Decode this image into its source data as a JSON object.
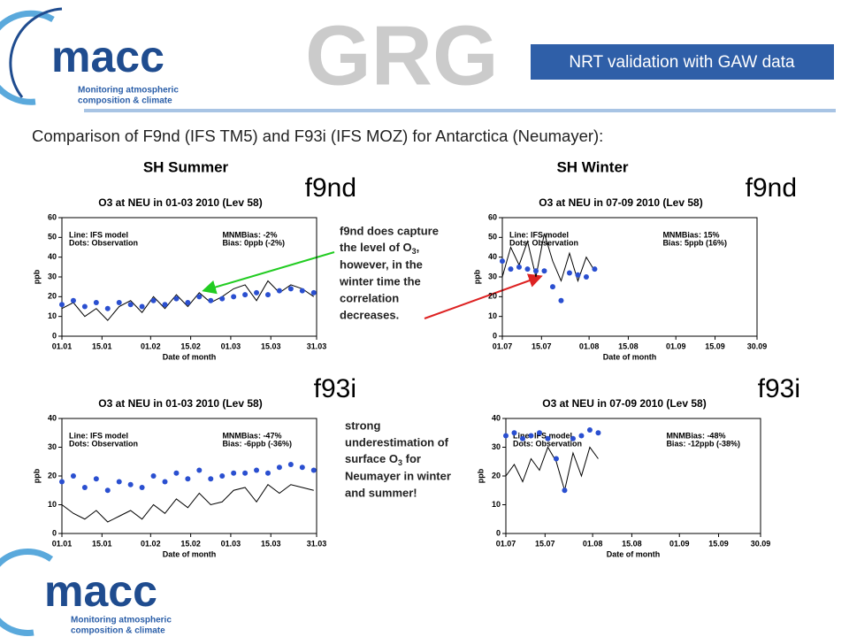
{
  "logo": {
    "name": "macc",
    "tagline_1": "Monitoring atmospheric",
    "tagline_2": "composition & climate"
  },
  "brand": "GRG",
  "header": {
    "title": "NRT validation with GAW data"
  },
  "subtitle": "Comparison of F9nd (IFS TM5) and F93i (IFS MOZ) for Antarctica (Neumayer):",
  "columns": [
    "SH Summer",
    "SH Winter"
  ],
  "notes": [
    {
      "parts": [
        "f9nd does capture",
        "the level of O",
        "3",
        ",",
        "however, in the",
        "winter time the",
        "correlation",
        "decreases."
      ]
    },
    {
      "parts": [
        "strong",
        "underestimation of",
        "surface O",
        "3",
        " for",
        "Neumayer in winter",
        "and summer!"
      ]
    }
  ],
  "chart_data": [
    {
      "type": "line",
      "title": "O3 at NEU in 01-03 2010 (Lev 58)",
      "tag": "f9nd",
      "xlabel": "Date of month",
      "ylabel": "ppb",
      "stats": [
        "MNMBias: -2%",
        "Bias: 0ppb (-2%)"
      ],
      "x": [
        0,
        4,
        8,
        12,
        16,
        20,
        24,
        28,
        32,
        36,
        40,
        44,
        48,
        52,
        56,
        60,
        64,
        68,
        72,
        76,
        80,
        84,
        88
      ],
      "series": [
        {
          "name": "Line: IFS model",
          "color": "#000000",
          "values": [
            14,
            17,
            10,
            14,
            8,
            15,
            18,
            12,
            20,
            14,
            21,
            15,
            22,
            17,
            20,
            24,
            26,
            18,
            28,
            22,
            26,
            24,
            20
          ]
        },
        {
          "name": "Dots: Observation",
          "color": "#2a4fd0",
          "values": [
            16,
            18,
            15,
            17,
            14,
            17,
            16,
            15,
            18,
            16,
            19,
            17,
            20,
            18,
            19,
            20,
            21,
            22,
            21,
            23,
            24,
            23,
            22
          ]
        }
      ],
      "xlim": [
        0,
        89
      ],
      "xticks": [
        {
          "value": 0,
          "label": "01.01"
        },
        {
          "value": 14,
          "label": "15.01"
        },
        {
          "value": 31,
          "label": "01.02"
        },
        {
          "value": 45,
          "label": "15.02"
        },
        {
          "value": 59,
          "label": "01.03"
        },
        {
          "value": 73,
          "label": "15.03"
        },
        {
          "value": 89,
          "label": "31.03"
        }
      ],
      "ylim": [
        0,
        60
      ],
      "yticks": [
        0,
        10,
        20,
        30,
        40,
        50,
        60
      ]
    },
    {
      "type": "line",
      "title": "O3 at NEU in 07-09 2010 (Lev 58)",
      "tag": "f9nd",
      "xlabel": "Date of month",
      "ylabel": "ppb",
      "stats": [
        "MNMBias: 15%",
        "Bias: 5ppb (16%)"
      ],
      "x": [
        0,
        3,
        6,
        9,
        12,
        15,
        18,
        21,
        24,
        27,
        30,
        33
      ],
      "series": [
        {
          "name": "Line: IFS model",
          "color": "#000000",
          "values": [
            30,
            45,
            36,
            48,
            30,
            52,
            38,
            28,
            42,
            28,
            40,
            33
          ]
        },
        {
          "name": "Dots: Observation",
          "color": "#2a4fd0",
          "values": [
            38,
            34,
            35,
            34,
            33,
            33,
            25,
            18,
            32,
            31,
            30,
            34
          ]
        }
      ],
      "xlim": [
        0,
        91
      ],
      "xticks": [
        {
          "value": 0,
          "label": "01.07"
        },
        {
          "value": 14,
          "label": "15.07"
        },
        {
          "value": 31,
          "label": "01.08"
        },
        {
          "value": 45,
          "label": "15.08"
        },
        {
          "value": 62,
          "label": "01.09"
        },
        {
          "value": 76,
          "label": "15.09"
        },
        {
          "value": 91,
          "label": "30.09"
        }
      ],
      "ylim": [
        0,
        60
      ],
      "yticks": [
        0,
        10,
        20,
        30,
        40,
        50,
        60
      ]
    },
    {
      "type": "line",
      "title": "O3 at NEU in 01-03 2010 (Lev 58)",
      "tag": "f93i",
      "xlabel": "Date of month",
      "ylabel": "ppb",
      "stats": [
        "MNMBias: -47%",
        "Bias: -6ppb (-36%)"
      ],
      "x": [
        0,
        4,
        8,
        12,
        16,
        20,
        24,
        28,
        32,
        36,
        40,
        44,
        48,
        52,
        56,
        60,
        64,
        68,
        72,
        76,
        80,
        84,
        88
      ],
      "series": [
        {
          "name": "Line: IFS model",
          "color": "#000000",
          "values": [
            10,
            7,
            5,
            8,
            4,
            6,
            8,
            5,
            10,
            7,
            12,
            9,
            14,
            10,
            11,
            15,
            16,
            11,
            17,
            14,
            17,
            16,
            15
          ]
        },
        {
          "name": "Dots: Observation",
          "color": "#2a4fd0",
          "values": [
            18,
            20,
            16,
            19,
            15,
            18,
            17,
            16,
            20,
            18,
            21,
            19,
            22,
            19,
            20,
            21,
            21,
            22,
            21,
            23,
            24,
            23,
            22
          ]
        }
      ],
      "xlim": [
        0,
        89
      ],
      "xticks": [
        {
          "value": 0,
          "label": "01.01"
        },
        {
          "value": 14,
          "label": "15.01"
        },
        {
          "value": 31,
          "label": "01.02"
        },
        {
          "value": 45,
          "label": "15.02"
        },
        {
          "value": 59,
          "label": "01.03"
        },
        {
          "value": 73,
          "label": "15.03"
        },
        {
          "value": 89,
          "label": "31.03"
        }
      ],
      "ylim": [
        0,
        40
      ],
      "yticks": [
        0,
        10,
        20,
        30,
        40
      ]
    },
    {
      "type": "line",
      "title": "O3 at NEU in 07-09 2010 (Lev 58)",
      "tag": "f93i",
      "xlabel": "Date of month",
      "ylabel": "ppb",
      "stats": [
        "MNMBias: -48%",
        "Bias: -12ppb (-38%)"
      ],
      "x": [
        0,
        3,
        6,
        9,
        12,
        15,
        18,
        21,
        24,
        27,
        30,
        33
      ],
      "series": [
        {
          "name": "Line: IFS model",
          "color": "#000000",
          "values": [
            20,
            24,
            18,
            26,
            22,
            30,
            25,
            15,
            28,
            20,
            30,
            26
          ]
        },
        {
          "name": "Dots: Observation",
          "color": "#2a4fd0",
          "values": [
            34,
            35,
            33,
            34,
            35,
            33,
            26,
            15,
            33,
            34,
            36,
            35
          ]
        }
      ],
      "xlim": [
        0,
        91
      ],
      "xticks": [
        {
          "value": 0,
          "label": "01.07"
        },
        {
          "value": 14,
          "label": "15.07"
        },
        {
          "value": 31,
          "label": "01.08"
        },
        {
          "value": 45,
          "label": "15.08"
        },
        {
          "value": 62,
          "label": "01.09"
        },
        {
          "value": 76,
          "label": "15.09"
        },
        {
          "value": 91,
          "label": "30.09"
        }
      ],
      "ylim": [
        0,
        40
      ],
      "yticks": [
        0,
        10,
        20,
        30,
        40
      ]
    }
  ]
}
